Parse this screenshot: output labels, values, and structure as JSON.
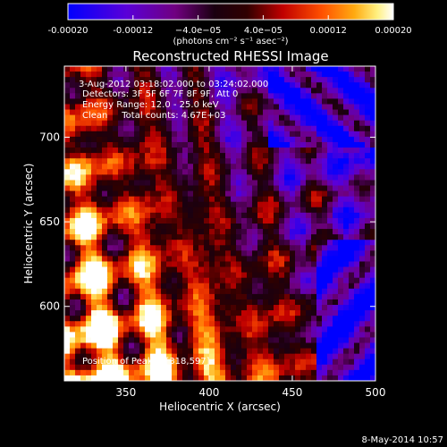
{
  "chart_data": {
    "type": "heatmap",
    "title": "Reconstructed RHESSI Image",
    "xlabel": "Heliocentric X (arcsec)",
    "ylabel": "Heliocentric Y (arcsec)",
    "xlim": [
      313,
      500
    ],
    "ylim": [
      556,
      742
    ],
    "xticks": [
      350,
      400,
      450,
      500
    ],
    "yticks": [
      600,
      650,
      700
    ],
    "colorbar": {
      "min": -0.0002,
      "max": 0.0002,
      "ticks": [
        "-0.00020",
        "-0.00012",
        "−4.0e−05",
        "4.0e−05",
        "0.00012",
        "0.00020"
      ],
      "tick_values": [
        -0.0002,
        -0.00012,
        -4e-05,
        4e-05,
        0.00012,
        0.0002
      ],
      "units_label": "(photons cm⁻² s⁻¹ asec⁻²)",
      "colormap": [
        "#0000ff",
        "#6a00c8",
        "#8a0070",
        "#000000",
        "#aa0000",
        "#ff4000",
        "#ff9900",
        "#ffee88",
        "#ffffff"
      ]
    },
    "annotations": {
      "time": "3-Aug-2012 03:18:02.000 to 03:24:02.000",
      "detectors": "Detectors: 3F 5F 6F 7F 8F 9F, Att 0",
      "energy": "Energy Range: 12.0 - 25.0 keV",
      "clean": "Clean     Total counts: 4.67E+03",
      "peak": "Position of Peak = [318,597]"
    },
    "peak_position": [
      318,
      597
    ],
    "footer_date": "8-May-2014 10:57"
  }
}
